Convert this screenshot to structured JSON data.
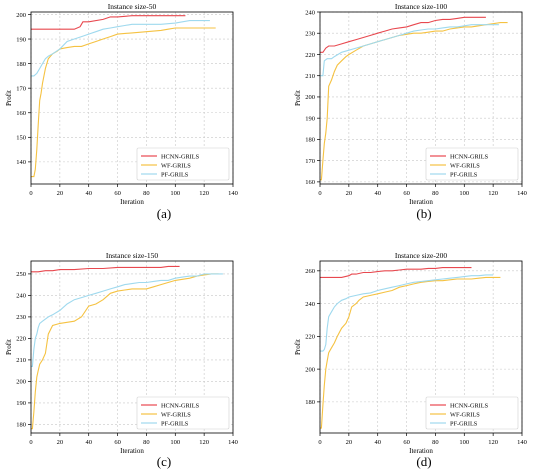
{
  "chart_data": [
    {
      "type": "line",
      "title": "Instance size-50",
      "xlabel": "Iteration",
      "ylabel": "Profit",
      "xlim": [
        0,
        140
      ],
      "ylim": [
        131,
        201
      ],
      "xticks": [
        0,
        20,
        40,
        60,
        80,
        100,
        120,
        140
      ],
      "yticks": [
        140,
        150,
        160,
        170,
        180,
        190,
        200
      ],
      "panel_label": "(a)",
      "grid": true,
      "legend": "bottom-right",
      "series": [
        {
          "name": "HCNN-GRILS",
          "color": "#e8484f",
          "x": [
            0,
            10,
            20,
            30,
            34,
            36,
            40,
            50,
            55,
            60,
            70,
            80,
            90,
            100,
            107
          ],
          "y": [
            194,
            194,
            194,
            194,
            195,
            197,
            197,
            198,
            199,
            199,
            199.5,
            199.5,
            199.5,
            199.5,
            199.5
          ]
        },
        {
          "name": "WF-GRILS",
          "color": "#f5c242",
          "x": [
            0,
            1,
            2,
            3,
            4,
            5,
            6,
            7,
            8,
            10,
            12,
            15,
            18,
            20,
            25,
            30,
            35,
            40,
            45,
            50,
            55,
            60,
            70,
            80,
            90,
            95,
            100,
            105,
            110,
            115,
            120,
            125,
            128
          ],
          "y": [
            134,
            134,
            134,
            137,
            145,
            155,
            165,
            168,
            172,
            178,
            182,
            184,
            185,
            186,
            186.5,
            187,
            187,
            188,
            189,
            190,
            191,
            192,
            192.5,
            193,
            193.5,
            194,
            194.5,
            194.5,
            194.5,
            194.5,
            194.5,
            194.5,
            194.5
          ]
        },
        {
          "name": "PF-GRILS",
          "color": "#9fd9ee",
          "x": [
            0,
            2,
            4,
            6,
            8,
            10,
            12,
            15,
            20,
            25,
            30,
            35,
            40,
            45,
            50,
            55,
            60,
            65,
            70,
            80,
            90,
            100,
            105,
            110,
            115,
            120,
            124
          ],
          "y": [
            175,
            175,
            176,
            178,
            180,
            182,
            183,
            184,
            186,
            189,
            190,
            191,
            192,
            193,
            194,
            194.5,
            195,
            195.5,
            196,
            196,
            196,
            196.5,
            197,
            197.5,
            197.5,
            197.5,
            197.5
          ]
        }
      ]
    },
    {
      "type": "line",
      "title": "Instance size-100",
      "xlabel": "Iteration",
      "ylabel": "Profit",
      "xlim": [
        0,
        140
      ],
      "ylim": [
        159,
        240
      ],
      "xticks": [
        0,
        20,
        40,
        60,
        80,
        100,
        120,
        140
      ],
      "yticks": [
        160,
        170,
        180,
        190,
        200,
        210,
        220,
        230,
        240
      ],
      "panel_label": "(b)",
      "grid": true,
      "legend": "bottom-right",
      "series": [
        {
          "name": "HCNN-GRILS",
          "color": "#e8484f",
          "x": [
            0,
            2,
            4,
            6,
            10,
            15,
            20,
            25,
            30,
            35,
            40,
            45,
            50,
            55,
            60,
            65,
            70,
            75,
            80,
            85,
            90,
            95,
            100,
            105,
            110,
            115
          ],
          "y": [
            221,
            221,
            223,
            224,
            224,
            225,
            226,
            227,
            228,
            229,
            230,
            231,
            232,
            232.5,
            233,
            234,
            235,
            235,
            236,
            236.5,
            236.5,
            237,
            237.5,
            237.5,
            237.5,
            237.5
          ]
        },
        {
          "name": "WF-GRILS",
          "color": "#f5c242",
          "x": [
            0,
            1,
            2,
            3,
            4,
            5,
            6,
            8,
            10,
            12,
            15,
            18,
            20,
            25,
            30,
            35,
            40,
            45,
            50,
            55,
            60,
            65,
            70,
            75,
            80,
            85,
            90,
            95,
            100,
            105,
            110,
            115,
            120,
            125,
            130
          ],
          "y": [
            161,
            161,
            170,
            178,
            183,
            190,
            205,
            208,
            212,
            215,
            217,
            219,
            220,
            222,
            224,
            225,
            226,
            227,
            228,
            229,
            229.5,
            230,
            230,
            230.5,
            231,
            231,
            232,
            232.5,
            233,
            233,
            233.5,
            234,
            234.5,
            235,
            235
          ]
        },
        {
          "name": "PF-GRILS",
          "color": "#9fd9ee",
          "x": [
            0,
            2,
            3,
            5,
            8,
            10,
            15,
            20,
            25,
            30,
            35,
            40,
            45,
            50,
            55,
            60,
            65,
            70,
            75,
            80,
            85,
            90,
            95,
            100,
            105,
            110,
            115,
            120,
            124
          ],
          "y": [
            210,
            210,
            217,
            218,
            218,
            219,
            221,
            222,
            223,
            224,
            225,
            226,
            227,
            228,
            229,
            230,
            231,
            231.5,
            232,
            232,
            232.5,
            233,
            233,
            233.5,
            234,
            234,
            234,
            234,
            234
          ]
        }
      ]
    },
    {
      "type": "line",
      "title": "Instance size-150",
      "xlabel": "Iteration",
      "ylabel": "Profit",
      "xlim": [
        0,
        140
      ],
      "ylim": [
        176,
        256
      ],
      "xticks": [
        0,
        20,
        40,
        60,
        80,
        100,
        120,
        140
      ],
      "yticks": [
        180,
        190,
        200,
        210,
        220,
        230,
        240,
        250
      ],
      "panel_label": "(c)",
      "grid": true,
      "legend": "bottom-right",
      "series": [
        {
          "name": "HCNN-GRILS",
          "color": "#e8484f",
          "x": [
            0,
            5,
            10,
            15,
            20,
            30,
            40,
            50,
            60,
            70,
            80,
            90,
            95,
            100,
            103
          ],
          "y": [
            251,
            251,
            251.5,
            251.5,
            252,
            252,
            252.5,
            252.5,
            253,
            253,
            253,
            253,
            253.5,
            253.5,
            253.5
          ]
        },
        {
          "name": "WF-GRILS",
          "color": "#f5c242",
          "x": [
            0,
            1,
            2,
            3,
            4,
            5,
            6,
            8,
            10,
            12,
            15,
            20,
            25,
            30,
            35,
            40,
            45,
            50,
            55,
            60,
            65,
            70,
            75,
            80,
            85,
            90,
            95,
            100,
            105,
            110,
            115,
            120,
            125,
            130
          ],
          "y": [
            178,
            178,
            186,
            195,
            202,
            205,
            208,
            210,
            213,
            222,
            226,
            227,
            227.5,
            228,
            230,
            235,
            236,
            238,
            241,
            242,
            242.5,
            243,
            243,
            243,
            244,
            245,
            246,
            247,
            247.5,
            248,
            249,
            249.5,
            250,
            250
          ]
        },
        {
          "name": "PF-GRILS",
          "color": "#9fd9ee",
          "x": [
            0,
            1,
            2,
            3,
            4,
            5,
            6,
            8,
            10,
            12,
            15,
            20,
            25,
            30,
            35,
            40,
            45,
            50,
            55,
            60,
            65,
            70,
            75,
            80,
            85,
            90,
            95,
            100,
            105,
            110,
            115,
            120,
            125,
            130,
            133
          ],
          "y": [
            207,
            207,
            215,
            220,
            222,
            225,
            227,
            228,
            229,
            230,
            231,
            233,
            236,
            238,
            239,
            240,
            241,
            242,
            243,
            244,
            245,
            245.5,
            246,
            246,
            246.5,
            247,
            247,
            248,
            248.5,
            249,
            249,
            250,
            250,
            250,
            250
          ]
        }
      ]
    },
    {
      "type": "line",
      "title": "Instance size-200",
      "xlabel": "Iteration",
      "ylabel": "Profit",
      "xlim": [
        0,
        140
      ],
      "ylim": [
        161,
        266
      ],
      "xticks": [
        0,
        20,
        40,
        60,
        80,
        100,
        120,
        140
      ],
      "yticks": [
        180,
        200,
        220,
        240,
        260
      ],
      "panel_label": "(d)",
      "grid": true,
      "legend": "bottom-right",
      "series": [
        {
          "name": "HCNN-GRILS",
          "color": "#e8484f",
          "x": [
            0,
            5,
            10,
            15,
            20,
            22,
            25,
            30,
            35,
            40,
            45,
            50,
            55,
            60,
            65,
            70,
            75,
            80,
            85,
            90,
            95,
            100,
            105
          ],
          "y": [
            256,
            256,
            256,
            256,
            257,
            258,
            258,
            259,
            259,
            259.5,
            260,
            260,
            260.5,
            261,
            261,
            261,
            261.5,
            261.5,
            262,
            262,
            262,
            262,
            262
          ]
        },
        {
          "name": "WF-GRILS",
          "color": "#f5c242",
          "x": [
            0,
            1,
            2,
            3,
            4,
            5,
            6,
            8,
            10,
            12,
            15,
            18,
            20,
            22,
            25,
            27,
            30,
            35,
            40,
            45,
            50,
            55,
            60,
            65,
            70,
            75,
            80,
            85,
            90,
            95,
            100,
            105,
            110,
            115,
            120,
            125
          ],
          "y": [
            164,
            164,
            178,
            190,
            200,
            205,
            210,
            213,
            216,
            220,
            225,
            228,
            232,
            238,
            240,
            242,
            244,
            245,
            246,
            247,
            248,
            250,
            251,
            252,
            253,
            253.5,
            254,
            254,
            254.5,
            255,
            255,
            255,
            255.5,
            256,
            256,
            256
          ]
        },
        {
          "name": "PF-GRILS",
          "color": "#9fd9ee",
          "x": [
            0,
            1,
            2,
            3,
            4,
            5,
            6,
            8,
            10,
            12,
            15,
            18,
            20,
            25,
            30,
            35,
            40,
            45,
            50,
            55,
            60,
            65,
            70,
            75,
            80,
            85,
            90,
            95,
            100,
            105,
            110,
            115,
            120
          ],
          "y": [
            211,
            211,
            211,
            212,
            215,
            225,
            232,
            235,
            238,
            240,
            242,
            243,
            244,
            245,
            246,
            246.5,
            248,
            249,
            250,
            251,
            252,
            253,
            253.5,
            254,
            254.5,
            255,
            255.5,
            256,
            256.5,
            257,
            257,
            257.5,
            257.5
          ]
        }
      ]
    }
  ]
}
